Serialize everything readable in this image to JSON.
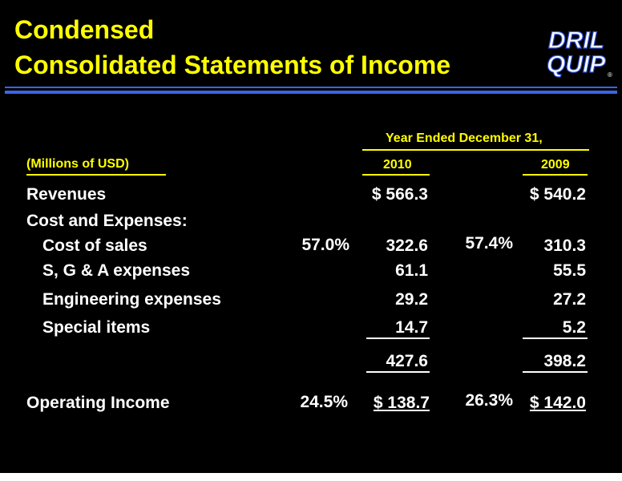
{
  "title": {
    "line1": "Condensed",
    "line2": "Consolidated Statements of Income"
  },
  "logo": {
    "line1": "DRIL",
    "line2": "QUIP",
    "mark": "®"
  },
  "header": {
    "period": "Year Ended December 31,",
    "units": "(Millions of USD)",
    "col_2010": "2010",
    "col_2009": "2009"
  },
  "rows": {
    "revenues": {
      "label": "Revenues",
      "v2010": "$ 566.3",
      "v2009": "$ 540.2"
    },
    "cost_and_expenses": {
      "label": "Cost and Expenses:"
    },
    "cost_of_sales": {
      "label": "Cost of sales",
      "pct2010": "57.0%",
      "v2010": "322.6",
      "pct2009": "57.4%",
      "v2009": "310.3"
    },
    "sga": {
      "label": "S, G & A expenses",
      "v2010": "61.1",
      "v2009": "55.5"
    },
    "engineering": {
      "label": "Engineering expenses",
      "v2010": "29.2",
      "v2009": "27.2"
    },
    "special": {
      "label": "Special items",
      "v2010": "14.7",
      "v2009": "5.2"
    },
    "total": {
      "v2010": "427.6",
      "v2009": "398.2"
    },
    "operating_income": {
      "label": "Operating Income",
      "pct2010": "24.5%",
      "v2010": "$ 138.7",
      "pct2009": "26.3%",
      "v2009": "$ 142.0"
    }
  },
  "colors": {
    "background": "#000000",
    "title": "#ffff00",
    "rule": "#3a64e8",
    "text": "#ffffff"
  }
}
